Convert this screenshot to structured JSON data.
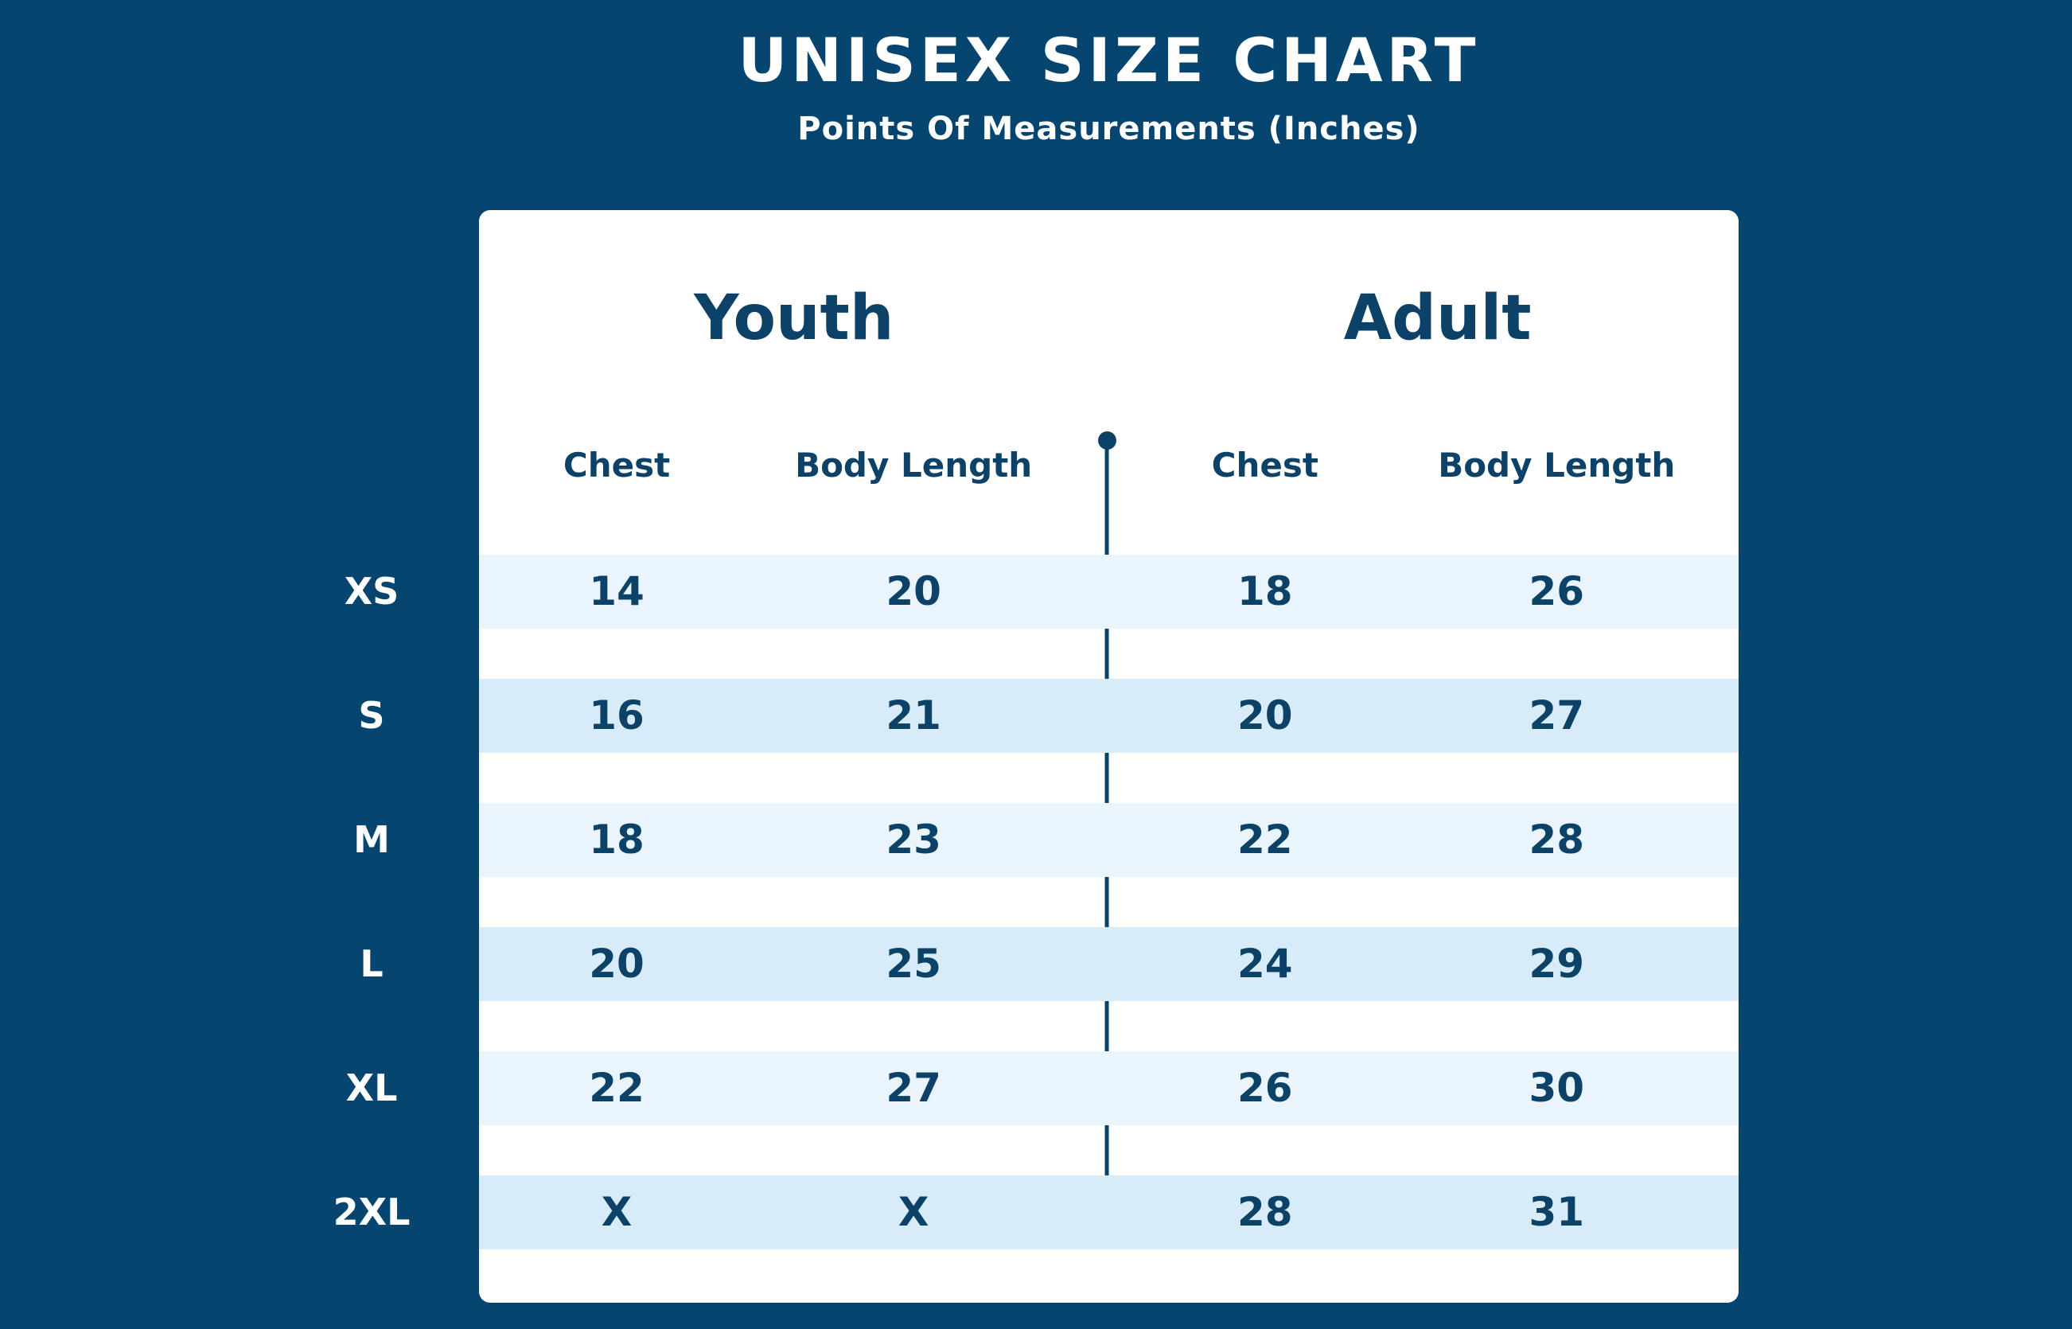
{
  "header": {
    "title": "UNISEX SIZE CHART",
    "subtitle": "Points Of Measurements (Inches)"
  },
  "colors": {
    "background": "#054570",
    "card": "#ffffff",
    "text_navy": "#0d4268",
    "stripe_light": "#e9f4fd",
    "stripe_dark": "#d7ebf8",
    "label_text": "#ffffff"
  },
  "chart_data": {
    "type": "table",
    "title": "UNISEX SIZE CHART",
    "subtitle": "Points Of Measurements (Inches)",
    "units": "Inches",
    "column_groups": [
      {
        "label": "Youth",
        "columns": [
          "Chest",
          "Body Length"
        ]
      },
      {
        "label": "Adult",
        "columns": [
          "Chest",
          "Body Length"
        ]
      }
    ],
    "rows": [
      {
        "size": "XS",
        "youth": {
          "chest": "14",
          "body_length": "20"
        },
        "adult": {
          "chest": "18",
          "body_length": "26"
        }
      },
      {
        "size": "S",
        "youth": {
          "chest": "16",
          "body_length": "21"
        },
        "adult": {
          "chest": "20",
          "body_length": "27"
        }
      },
      {
        "size": "M",
        "youth": {
          "chest": "18",
          "body_length": "23"
        },
        "adult": {
          "chest": "22",
          "body_length": "28"
        }
      },
      {
        "size": "L",
        "youth": {
          "chest": "20",
          "body_length": "25"
        },
        "adult": {
          "chest": "24",
          "body_length": "29"
        }
      },
      {
        "size": "XL",
        "youth": {
          "chest": "22",
          "body_length": "27"
        },
        "adult": {
          "chest": "26",
          "body_length": "30"
        }
      },
      {
        "size": "2XL",
        "youth": {
          "chest": "X",
          "body_length": "X"
        },
        "adult": {
          "chest": "28",
          "body_length": "31"
        }
      }
    ]
  }
}
